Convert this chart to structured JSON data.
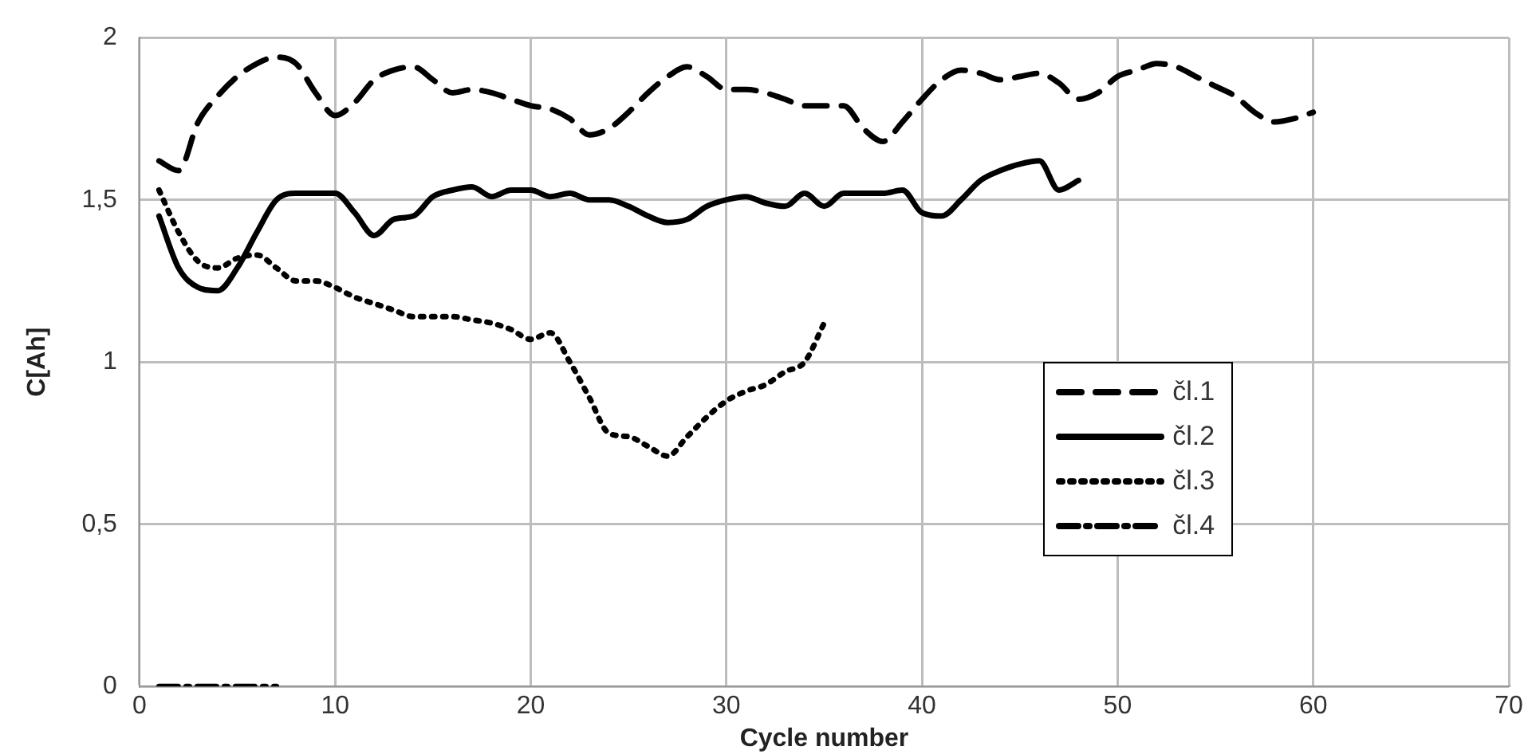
{
  "chart_data": {
    "type": "line",
    "xlabel": "Cycle number",
    "ylabel": "C[Ah]",
    "xlim": [
      0,
      70
    ],
    "xticks": [
      0,
      10,
      20,
      30,
      40,
      50,
      60,
      70
    ],
    "ylim": [
      0,
      2
    ],
    "yticks": [
      0,
      {
        "value": 0.5,
        "label": "0,5"
      },
      1,
      {
        "value": 1.5,
        "label": "1,5"
      },
      2
    ],
    "grid": true,
    "legend": "right",
    "marker": "none",
    "series": [
      {
        "name": "čl.1",
        "color": "#000000",
        "line_style": "dashed",
        "x": [
          1,
          2,
          3,
          4,
          5,
          6,
          7,
          8,
          9,
          10,
          11,
          12,
          13,
          14,
          15,
          16,
          17,
          18,
          19,
          20,
          21,
          22,
          23,
          24,
          25,
          26,
          27,
          28,
          29,
          30,
          31,
          32,
          33,
          34,
          35,
          36,
          37,
          38,
          39,
          40,
          41,
          42,
          43,
          44,
          45,
          46,
          47,
          48,
          49,
          50,
          51,
          52,
          53,
          54,
          55,
          56,
          57,
          58,
          59,
          60
        ],
        "values": [
          1.62,
          1.59,
          1.74,
          1.82,
          1.88,
          1.92,
          1.94,
          1.92,
          1.83,
          1.76,
          1.8,
          1.87,
          1.9,
          1.91,
          1.87,
          1.83,
          1.84,
          1.83,
          1.81,
          1.79,
          1.78,
          1.75,
          1.7,
          1.72,
          1.77,
          1.83,
          1.88,
          1.91,
          1.88,
          1.84,
          1.84,
          1.83,
          1.81,
          1.79,
          1.79,
          1.79,
          1.72,
          1.68,
          1.74,
          1.81,
          1.87,
          1.9,
          1.89,
          1.87,
          1.88,
          1.89,
          1.86,
          1.81,
          1.83,
          1.88,
          1.9,
          1.92,
          1.91,
          1.88,
          1.85,
          1.82,
          1.77,
          1.74,
          1.75,
          1.77
        ]
      },
      {
        "name": "čl.2",
        "color": "#000000",
        "line_style": "solid",
        "x": [
          1,
          2,
          3,
          4,
          5,
          6,
          7,
          8,
          9,
          10,
          11,
          12,
          13,
          14,
          15,
          16,
          17,
          18,
          19,
          20,
          21,
          22,
          23,
          24,
          25,
          26,
          27,
          28,
          29,
          30,
          31,
          32,
          33,
          34,
          35,
          36,
          37,
          38,
          39,
          40,
          41,
          42,
          43,
          44,
          45,
          46,
          47,
          48
        ],
        "values": [
          1.45,
          1.29,
          1.23,
          1.22,
          1.29,
          1.4,
          1.5,
          1.52,
          1.52,
          1.52,
          1.46,
          1.39,
          1.44,
          1.45,
          1.51,
          1.53,
          1.54,
          1.51,
          1.53,
          1.53,
          1.51,
          1.52,
          1.5,
          1.5,
          1.48,
          1.45,
          1.43,
          1.44,
          1.48,
          1.5,
          1.51,
          1.49,
          1.48,
          1.52,
          1.48,
          1.52,
          1.52,
          1.52,
          1.53,
          1.46,
          1.45,
          1.5,
          1.56,
          1.59,
          1.61,
          1.62,
          1.53,
          1.56
        ]
      },
      {
        "name": "čl.3",
        "color": "#000000",
        "line_style": "dotted",
        "x": [
          1,
          2,
          3,
          4,
          5,
          6,
          7,
          8,
          9,
          10,
          11,
          12,
          13,
          14,
          15,
          16,
          17,
          18,
          19,
          20,
          21,
          22,
          23,
          24,
          25,
          26,
          27,
          28,
          29,
          30,
          31,
          32,
          33,
          34,
          35
        ],
        "values": [
          1.53,
          1.4,
          1.31,
          1.29,
          1.32,
          1.33,
          1.29,
          1.25,
          1.25,
          1.23,
          1.2,
          1.18,
          1.16,
          1.14,
          1.14,
          1.14,
          1.13,
          1.12,
          1.1,
          1.07,
          1.09,
          1.0,
          0.89,
          0.78,
          0.77,
          0.74,
          0.71,
          0.77,
          0.83,
          0.88,
          0.91,
          0.93,
          0.97,
          1.0,
          1.12
        ]
      },
      {
        "name": "čl.4",
        "color": "#000000",
        "line_style": "dashdot",
        "x": [
          1,
          2,
          3,
          4,
          5,
          6,
          7
        ],
        "values": [
          0,
          0,
          0,
          0,
          0,
          0,
          0
        ]
      }
    ]
  }
}
